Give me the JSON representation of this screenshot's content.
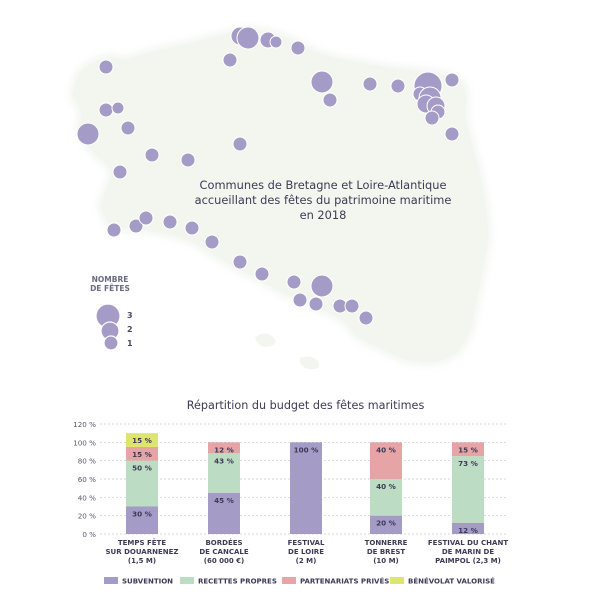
{
  "map": {
    "title_lines": [
      "Communes de Bretagne et Loire-Atlantique",
      "accueillant des fêtes du patrimoine maritime",
      "en 2018"
    ],
    "legend": {
      "title_lines": [
        "NOMBRE",
        "DE FÊTES"
      ],
      "levels": [
        "3",
        "2",
        "1"
      ]
    },
    "colors": {
      "land": "#f2f6ee",
      "shadow": "#e3ece0",
      "bubble": "#a49cc6",
      "bubble_stroke": "#ffffff"
    }
  },
  "chart_data": {
    "type": "bar",
    "stacked": true,
    "title": "Répartition du budget des fêtes maritimes",
    "categories": [
      [
        "TEMPS FÊTE",
        "SUR DOUARNENEZ",
        "(1,5 M)"
      ],
      [
        "BORDÉES",
        "DE CANCALE",
        "(60 000 €)"
      ],
      [
        "FESTIVAL",
        "DE LOIRE",
        "(2 M)"
      ],
      [
        "TONNERRE",
        "DE BREST",
        "(10 M)"
      ],
      [
        "FESTIVAL DU CHANT",
        "DE MARIN DE",
        "PAIMPOL (2,3 M)"
      ]
    ],
    "series": [
      {
        "name": "SUBVENTION",
        "color": "#a49cc6",
        "values": [
          30,
          45,
          100,
          20,
          12
        ],
        "labels": [
          "30 %",
          "45 %",
          "100 %",
          "20 %",
          "12 %"
        ]
      },
      {
        "name": "RECETTES PROPRES",
        "color": "#bcdcc4",
        "values": [
          50,
          43,
          0,
          40,
          73
        ],
        "labels": [
          "50 %",
          "43 %",
          "",
          "40 %",
          "73 %"
        ]
      },
      {
        "name": "PARTENARIATS PRIVÉS",
        "color": "#e6a4a6",
        "values": [
          15,
          12,
          0,
          40,
          15
        ],
        "labels": [
          "15 %",
          "12 %",
          "",
          "40 %",
          "15 %"
        ]
      },
      {
        "name": "BÉNÉVOLAT VALORISÉ",
        "color": "#dde56a",
        "values": [
          15,
          0,
          0,
          0,
          0
        ],
        "labels": [
          "15 %",
          "",
          "",
          "",
          ""
        ]
      }
    ],
    "yticks": [
      "0 %",
      "20 %",
      "40 %",
      "60 %",
      "80 %",
      "100 %",
      "120 %"
    ],
    "ylim": [
      0,
      120
    ],
    "grid": true,
    "legend_position": "bottom"
  }
}
